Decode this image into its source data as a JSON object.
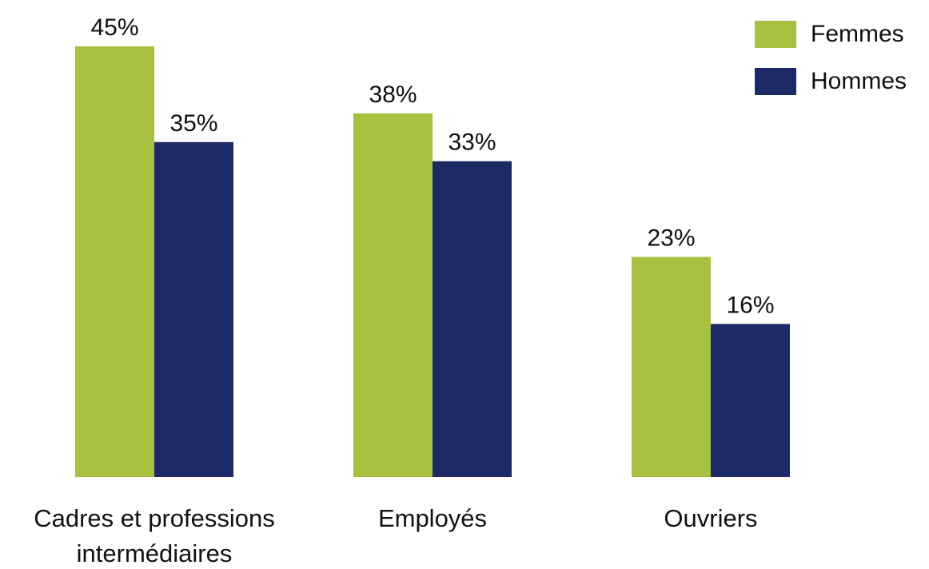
{
  "chart_data": {
    "type": "bar",
    "categories": [
      "Cadres et professions\nintermédiaires",
      "Employés",
      "Ouvriers"
    ],
    "series": [
      {
        "name": "Femmes",
        "values": [
          45,
          38,
          23
        ],
        "labels": [
          "45%",
          "38%",
          "23%"
        ],
        "color": "#a7c03f"
      },
      {
        "name": "Hommes",
        "values": [
          35,
          33,
          16
        ],
        "labels": [
          "35%",
          "33%",
          "16%"
        ],
        "color": "#1e2a66"
      }
    ],
    "title": "",
    "xlabel": "",
    "ylabel": "",
    "ylim": [
      0,
      45
    ],
    "grid": false,
    "legend_position": "top-right"
  }
}
